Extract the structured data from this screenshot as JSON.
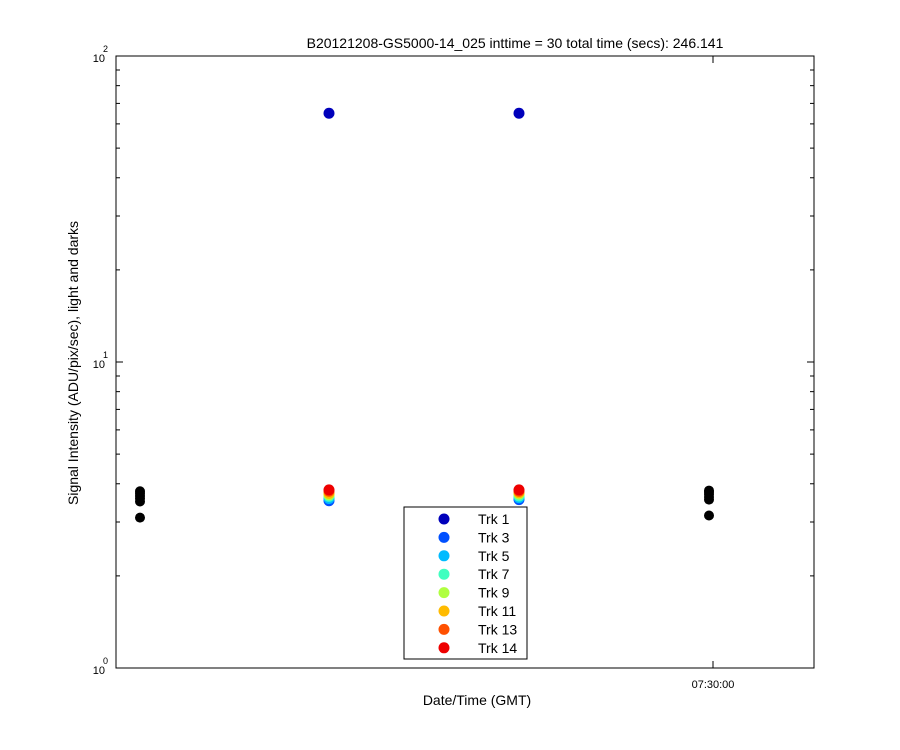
{
  "chart_data": {
    "type": "scatter",
    "title": "B20121208-GS5000-14_025 inttime = 30 total time (secs): 246.141",
    "xlabel": "Date/Time (GMT)",
    "ylabel": "Signal Intensity (ADU/pix/sec), light and darks",
    "yscale": "log",
    "ylim": [
      1,
      100
    ],
    "y_ticks": [
      {
        "value": 1,
        "base": "10",
        "exp": "0"
      },
      {
        "value": 10,
        "base": "10",
        "exp": "1"
      },
      {
        "value": 100,
        "base": "10",
        "exp": "2"
      }
    ],
    "x_tick_labels": [
      "07:30:00"
    ],
    "x_positions": [
      "t1",
      "t2",
      "t3",
      "t4"
    ],
    "dark_series": {
      "color": "#000000",
      "points": [
        {
          "x": "t1",
          "y": [
            3.1,
            3.5,
            3.58,
            3.65,
            3.72,
            3.78
          ]
        },
        {
          "x": "t4",
          "y": [
            3.15,
            3.55,
            3.62,
            3.7,
            3.76,
            3.8
          ]
        }
      ]
    },
    "series": [
      {
        "name": "Trk 1",
        "color": "#0000bb",
        "points": [
          {
            "x": "t2",
            "y": 65
          },
          {
            "x": "t3",
            "y": 65
          }
        ]
      },
      {
        "name": "Trk 3",
        "color": "#0050ff",
        "points": [
          {
            "x": "t2",
            "y": 3.52
          },
          {
            "x": "t3",
            "y": 3.55
          }
        ]
      },
      {
        "name": "Trk 5",
        "color": "#00bbff",
        "points": [
          {
            "x": "t2",
            "y": 3.58
          },
          {
            "x": "t3",
            "y": 3.6
          }
        ]
      },
      {
        "name": "Trk 7",
        "color": "#40ffc0",
        "points": [
          {
            "x": "t2",
            "y": 3.64
          },
          {
            "x": "t3",
            "y": 3.65
          }
        ]
      },
      {
        "name": "Trk 9",
        "color": "#b0ff40",
        "points": [
          {
            "x": "t2",
            "y": 3.68
          },
          {
            "x": "t3",
            "y": 3.7
          }
        ]
      },
      {
        "name": "Trk 11",
        "color": "#ffbb00",
        "points": [
          {
            "x": "t2",
            "y": 3.72
          },
          {
            "x": "t3",
            "y": 3.74
          }
        ]
      },
      {
        "name": "Trk 13",
        "color": "#ff5000",
        "points": [
          {
            "x": "t2",
            "y": 3.78
          },
          {
            "x": "t3",
            "y": 3.78
          }
        ]
      },
      {
        "name": "Trk 14",
        "color": "#ee0000",
        "points": [
          {
            "x": "t2",
            "y": 3.82
          },
          {
            "x": "t3",
            "y": 3.82
          }
        ]
      }
    ],
    "legend_location": "bottom-center",
    "grid": false
  }
}
